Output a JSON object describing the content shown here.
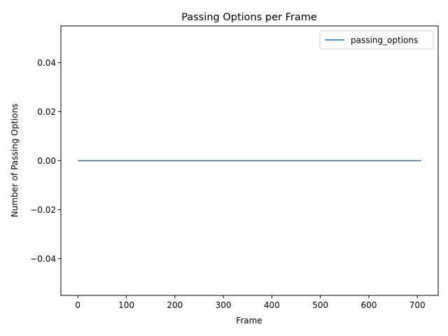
{
  "chart_data": {
    "type": "line",
    "title": "Passing Options per Frame",
    "xlabel": "Frame",
    "ylabel": "Number of Passing Options",
    "xlim": [
      -35,
      743
    ],
    "ylim": [
      -0.055,
      0.055
    ],
    "xticks": [
      0,
      100,
      200,
      300,
      400,
      500,
      600,
      700
    ],
    "xtick_labels": [
      "0",
      "100",
      "200",
      "300",
      "400",
      "500",
      "600",
      "700"
    ],
    "yticks": [
      -0.04,
      -0.02,
      0.0,
      0.02,
      0.04
    ],
    "ytick_labels": [
      "−0.04",
      "−0.02",
      "0.00",
      "0.02",
      "0.04"
    ],
    "grid": false,
    "legend_position": "upper right",
    "series": [
      {
        "name": "passing_options",
        "color": "#1f77b4",
        "x": [
          0,
          708
        ],
        "y": [
          0,
          0
        ]
      }
    ]
  }
}
